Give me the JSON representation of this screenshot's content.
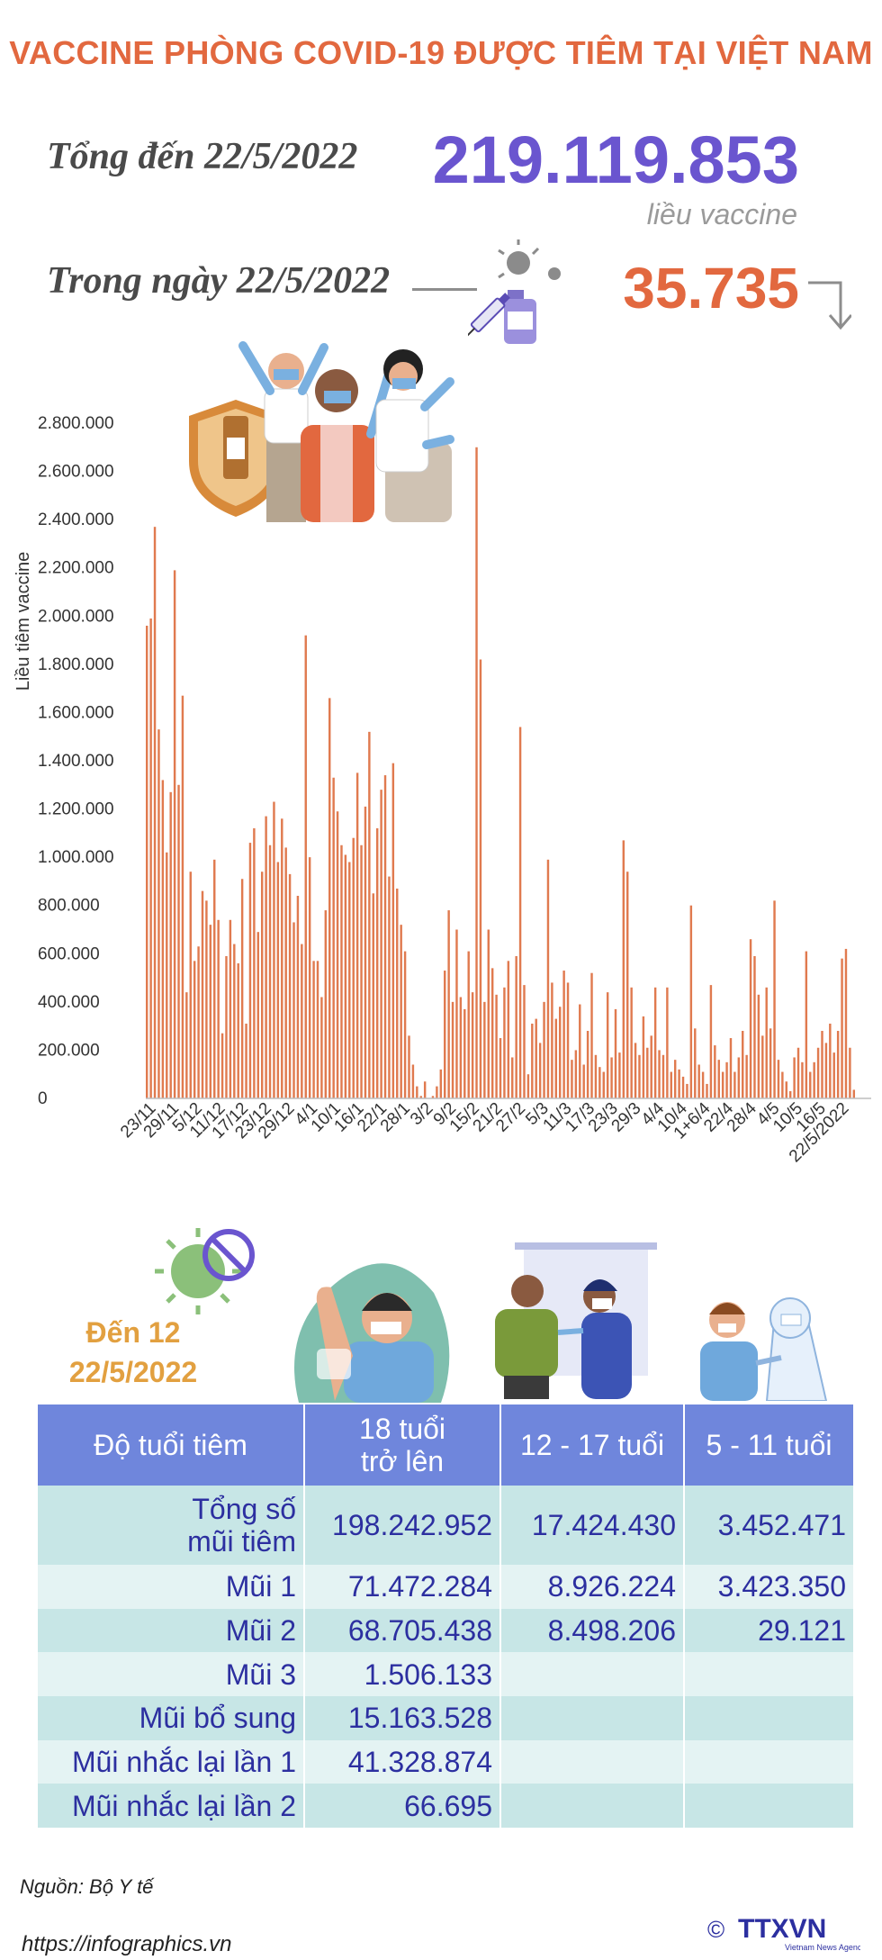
{
  "title": "VACCINE PHÒNG COVID-19 ĐƯỢC TIÊM TẠI VIỆT NAM",
  "summary": {
    "total_label": "Tổng đến 22/5/2022",
    "total_value": "219.119.853",
    "total_unit": "liều vaccine",
    "daily_label": "Trong ngày 22/5/2022",
    "daily_value": "35.735",
    "daily_trend": "down"
  },
  "chart_data": {
    "type": "bar",
    "ylabel": "Liều tiêm vaccine",
    "ylim": [
      0,
      2800000
    ],
    "y_ticks": [
      "0",
      "200.000",
      "400.000",
      "600.000",
      "800.000",
      "1.000.000",
      "1.200.000",
      "1.400.000",
      "1.600.000",
      "1.800.000",
      "2.000.000",
      "2.200.000",
      "2.400.000",
      "2.600.000",
      "2.800.000"
    ],
    "x_tick_labels": [
      "23/11",
      "29/11",
      "5/12",
      "11/12",
      "17/12",
      "23/12",
      "29/12",
      "4/1",
      "10/1",
      "16/1",
      "22/1",
      "28/1",
      "3/2",
      "9/2",
      "15/2",
      "21/2",
      "27/2",
      "5/3",
      "11/3",
      "17/3",
      "23/3",
      "29/3",
      "4/4",
      "10/4",
      "1+6/4",
      "22/4",
      "28/4",
      "4/5",
      "10/5",
      "16/5",
      "22/5/2022"
    ],
    "values": [
      1960000,
      1990000,
      2370000,
      1530000,
      1320000,
      1020000,
      1270000,
      2190000,
      1300000,
      1670000,
      440000,
      940000,
      570000,
      630000,
      860000,
      820000,
      720000,
      990000,
      740000,
      270000,
      590000,
      740000,
      640000,
      560000,
      910000,
      310000,
      1060000,
      1120000,
      690000,
      940000,
      1170000,
      1050000,
      1230000,
      980000,
      1160000,
      1040000,
      930000,
      730000,
      840000,
      640000,
      1920000,
      1000000,
      570000,
      570000,
      420000,
      780000,
      1660000,
      1330000,
      1190000,
      1050000,
      1010000,
      980000,
      1080000,
      1350000,
      1050000,
      1210000,
      1520000,
      850000,
      1120000,
      1280000,
      1340000,
      920000,
      1390000,
      870000,
      720000,
      610000,
      260000,
      140000,
      50000,
      10000,
      70000,
      0,
      10000,
      50000,
      120000,
      530000,
      780000,
      400000,
      700000,
      420000,
      370000,
      610000,
      440000,
      2700000,
      1820000,
      400000,
      700000,
      540000,
      430000,
      250000,
      460000,
      570000,
      170000,
      590000,
      1540000,
      470000,
      100000,
      310000,
      330000,
      230000,
      400000,
      990000,
      480000,
      330000,
      380000,
      530000,
      480000,
      160000,
      200000,
      390000,
      140000,
      280000,
      520000,
      180000,
      130000,
      110000,
      440000,
      170000,
      370000,
      190000,
      1070000,
      940000,
      460000,
      230000,
      180000,
      340000,
      210000,
      260000,
      460000,
      200000,
      180000,
      460000,
      110000,
      160000,
      120000,
      90000,
      60000,
      800000,
      290000,
      140000,
      110000,
      60000,
      470000,
      220000,
      160000,
      110000,
      150000,
      250000,
      110000,
      170000,
      280000,
      180000,
      660000,
      590000,
      430000,
      260000,
      460000,
      290000,
      820000,
      160000,
      110000,
      70000,
      30000,
      170000,
      210000,
      150000,
      610000,
      110000,
      150000,
      210000,
      280000,
      230000,
      310000,
      190000,
      280000,
      580000,
      620000,
      210000,
      35735
    ]
  },
  "age_table": {
    "label_line1": "Đến 12",
    "label_line2": "22/5/2022",
    "header": {
      "col0": "Độ tuổi tiêm",
      "col1_line1": "18 tuổi",
      "col1_line2": "trở lên",
      "col2": "12 - 17 tuổi",
      "col3": "5 - 11 tuổi"
    },
    "rows": [
      {
        "label_line1": "Tổng số",
        "label_line2": "mũi tiêm",
        "c18": "198.242.952",
        "c12": "17.424.430",
        "c5": "3.452.471"
      },
      {
        "label": "Mũi 1",
        "c18": "71.472.284",
        "c12": "8.926.224",
        "c5": "3.423.350"
      },
      {
        "label": "Mũi 2",
        "c18": "68.705.438",
        "c12": "8.498.206",
        "c5": "29.121"
      },
      {
        "label": "Mũi 3",
        "c18": "1.506.133",
        "c12": "",
        "c5": ""
      },
      {
        "label": "Mũi bổ sung",
        "c18": "15.163.528",
        "c12": "",
        "c5": ""
      },
      {
        "label": "Mũi nhắc lại lần 1",
        "c18": "41.328.874",
        "c12": "",
        "c5": ""
      },
      {
        "label": "Mũi nhắc lại lần 2",
        "c18": "66.695",
        "c12": "",
        "c5": ""
      }
    ]
  },
  "footer": {
    "source": "Nguồn: Bộ Y tế",
    "url": "https://infographics.vn",
    "copyright": "©",
    "logo_text": "TTXVN",
    "logo_sub": "Vietnam News Agency"
  },
  "colors": {
    "accent_orange": "#e2683f",
    "accent_purple": "#6a55cf",
    "bar": "#e07a4f",
    "table_header": "#6f86dc",
    "table_row_dark": "#c7e6e6",
    "table_row_light": "#e4f3f3",
    "table_text": "#2c2fa0"
  },
  "illustrations": {
    "top": "people-celebrating-vaccine-icon",
    "syringe": "syringe-vaccine-vial-icon",
    "virus": "virus-crossed-icon",
    "adult": "vaccinated-man-icon",
    "teen": "teen-vaccination-icon",
    "child": "child-vaccination-icon"
  }
}
